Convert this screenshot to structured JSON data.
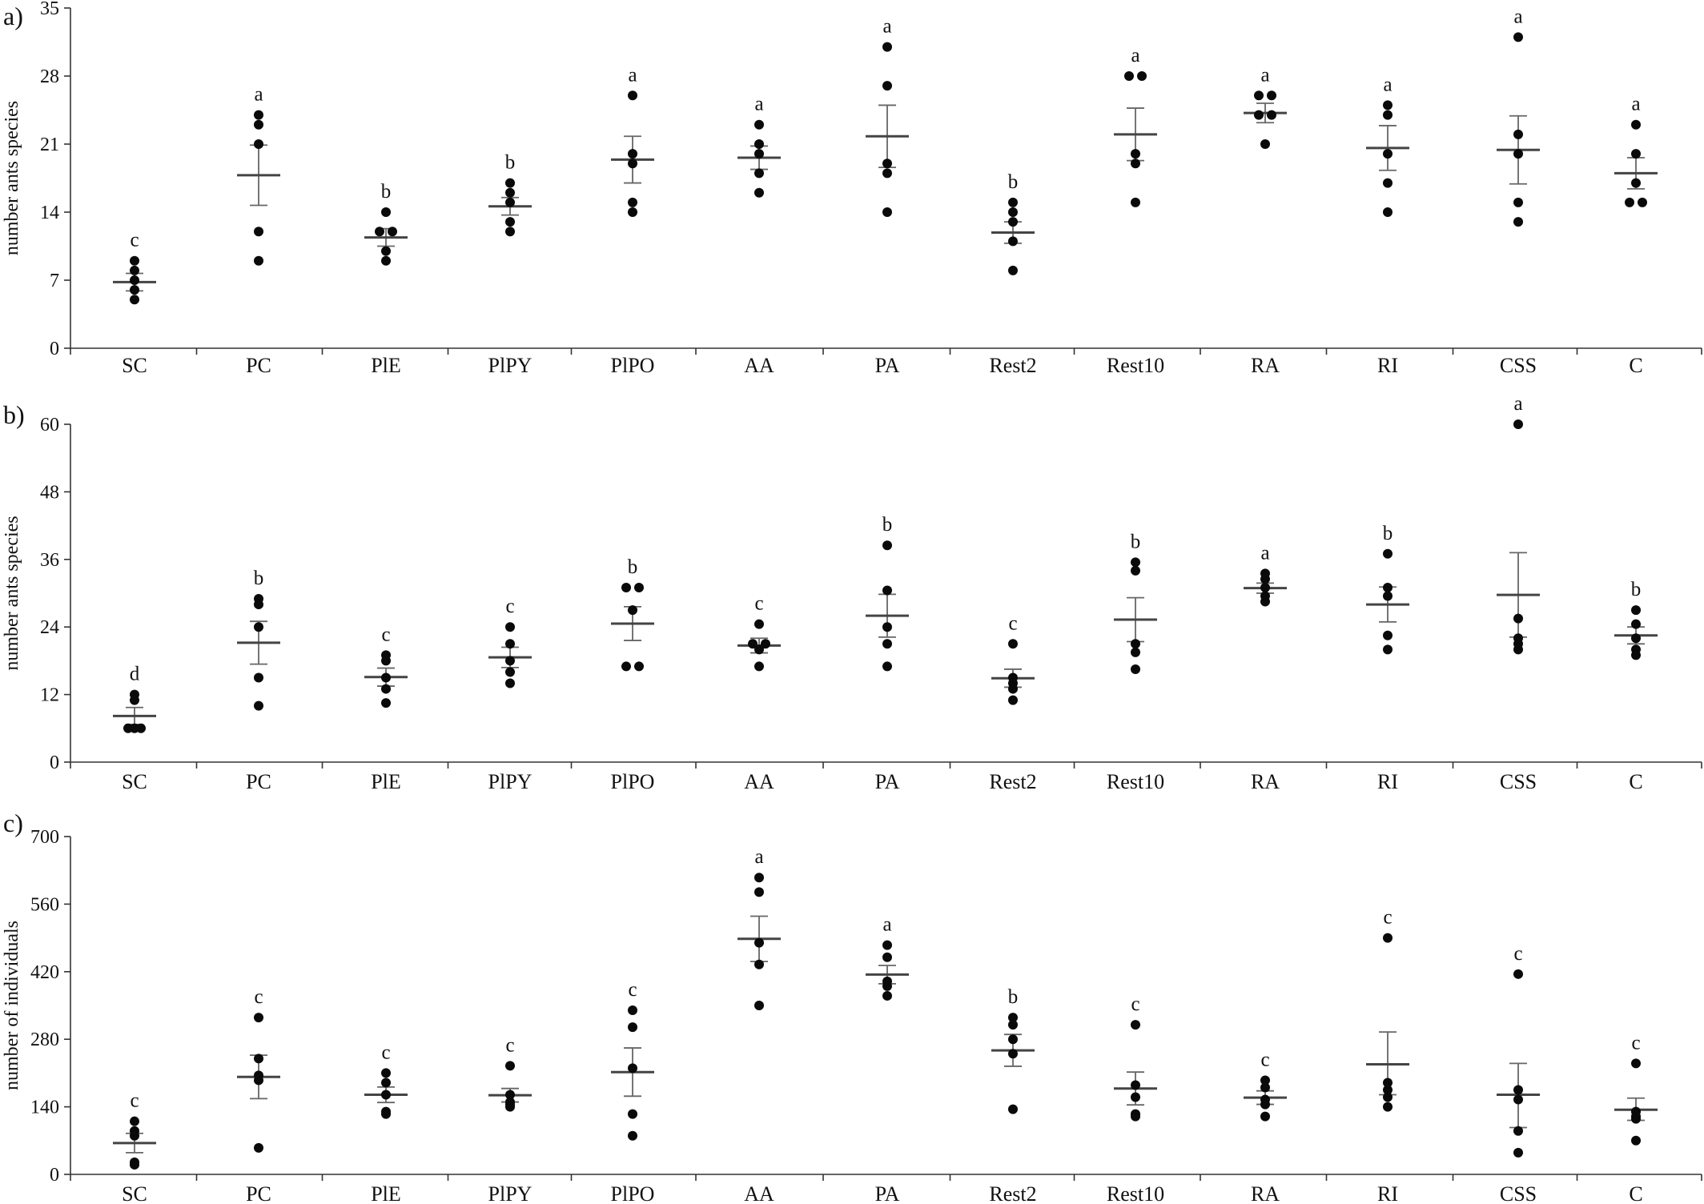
{
  "chart_data": [
    {
      "panel_label": "a)",
      "type": "scatter",
      "ylabel": "number ants species",
      "ylim": [
        0,
        35
      ],
      "yticks": [
        0,
        7,
        14,
        21,
        28,
        35
      ],
      "categories": [
        "SC",
        "PC",
        "PlE",
        "PlPY",
        "PlPO",
        "AA",
        "PA",
        "Rest2",
        "Rest10",
        "RA",
        "RI",
        "CSS",
        "C"
      ],
      "groups": [
        {
          "category": "SC",
          "points": [
            9,
            8,
            7,
            6,
            5
          ],
          "mean": 6.8,
          "se_low": 5.9,
          "se_high": 7.7,
          "letter": "c"
        },
        {
          "category": "PC",
          "points": [
            24,
            23,
            21,
            12,
            9
          ],
          "mean": 17.8,
          "se_low": 14.7,
          "se_high": 20.9,
          "letter": "a"
        },
        {
          "category": "PlE",
          "points": [
            14,
            12,
            12,
            10,
            9
          ],
          "mean": 11.4,
          "se_low": 10.5,
          "se_high": 12.3,
          "letter": "b"
        },
        {
          "category": "PlPY",
          "points": [
            17,
            16,
            15,
            13,
            12
          ],
          "mean": 14.6,
          "se_low": 13.7,
          "se_high": 15.5,
          "letter": "b"
        },
        {
          "category": "PlPO",
          "points": [
            26,
            20,
            19,
            15,
            14
          ],
          "mean": 19.4,
          "se_low": 17.0,
          "se_high": 21.8,
          "letter": "a"
        },
        {
          "category": "AA",
          "points": [
            23,
            21,
            20,
            18,
            16
          ],
          "mean": 19.6,
          "se_low": 18.4,
          "se_high": 20.8,
          "letter": "a"
        },
        {
          "category": "PA",
          "points": [
            31,
            27,
            19,
            18,
            14
          ],
          "mean": 21.8,
          "se_low": 18.6,
          "se_high": 25.0,
          "letter": "a"
        },
        {
          "category": "Rest2",
          "points": [
            15,
            14,
            13,
            11,
            8
          ],
          "mean": 11.9,
          "se_low": 10.8,
          "se_high": 13.0,
          "letter": "b"
        },
        {
          "category": "Rest10",
          "points": [
            28,
            28,
            20,
            19,
            15
          ],
          "mean": 22.0,
          "se_low": 19.3,
          "se_high": 24.7,
          "letter": "a"
        },
        {
          "category": "RA",
          "points": [
            26,
            26,
            24,
            24,
            21
          ],
          "mean": 24.2,
          "se_low": 23.2,
          "se_high": 25.2,
          "letter": "a"
        },
        {
          "category": "RI",
          "points": [
            25,
            24,
            20,
            17,
            14
          ],
          "mean": 20.6,
          "se_low": 18.3,
          "se_high": 22.9,
          "letter": "a"
        },
        {
          "category": "CSS",
          "points": [
            32,
            22,
            20,
            15,
            13
          ],
          "mean": 20.4,
          "se_low": 16.9,
          "se_high": 23.9,
          "letter": "a"
        },
        {
          "category": "C",
          "points": [
            23,
            20,
            17,
            15,
            15
          ],
          "mean": 18.0,
          "se_low": 16.4,
          "se_high": 19.6,
          "letter": "a"
        }
      ]
    },
    {
      "panel_label": "b)",
      "type": "scatter",
      "ylabel": "number ants species",
      "ylim": [
        0,
        60
      ],
      "yticks": [
        0,
        12,
        24,
        36,
        48,
        60
      ],
      "categories": [
        "SC",
        "PC",
        "PlE",
        "PlPY",
        "PlPO",
        "AA",
        "PA",
        "Rest2",
        "Rest10",
        "RA",
        "RI",
        "CSS",
        "C"
      ],
      "groups": [
        {
          "category": "SC",
          "points": [
            12,
            11,
            6,
            6,
            6
          ],
          "mean": 8.2,
          "se_low": 6.7,
          "se_high": 9.7,
          "letter": "d"
        },
        {
          "category": "PC",
          "points": [
            29,
            28,
            24,
            15,
            10
          ],
          "mean": 21.2,
          "se_low": 17.4,
          "se_high": 25.0,
          "letter": "b"
        },
        {
          "category": "PlE",
          "points": [
            19,
            18,
            15,
            13,
            10.5
          ],
          "mean": 15.1,
          "se_low": 13.5,
          "se_high": 16.7,
          "letter": "c"
        },
        {
          "category": "PlPY",
          "points": [
            24,
            21,
            18,
            16,
            14
          ],
          "mean": 18.6,
          "se_low": 16.8,
          "se_high": 20.4,
          "letter": "c"
        },
        {
          "category": "PlPO",
          "points": [
            31,
            31,
            27,
            17,
            17
          ],
          "mean": 24.6,
          "se_low": 21.6,
          "se_high": 27.6,
          "letter": "b"
        },
        {
          "category": "AA",
          "points": [
            24.5,
            21,
            21,
            20,
            17
          ],
          "mean": 20.7,
          "se_low": 19.4,
          "se_high": 22.0,
          "letter": "c"
        },
        {
          "category": "PA",
          "points": [
            38.5,
            30.5,
            24,
            21,
            17
          ],
          "mean": 26.0,
          "se_low": 22.2,
          "se_high": 29.8,
          "letter": "b"
        },
        {
          "category": "Rest2",
          "points": [
            21,
            15,
            14,
            13,
            11
          ],
          "mean": 14.9,
          "se_low": 13.3,
          "se_high": 16.5,
          "letter": "c"
        },
        {
          "category": "Rest10",
          "points": [
            35.5,
            34,
            21,
            19.5,
            16.5
          ],
          "mean": 25.3,
          "se_low": 21.4,
          "se_high": 29.2,
          "letter": "b"
        },
        {
          "category": "RA",
          "points": [
            33.5,
            32.5,
            31,
            29.5,
            28.5
          ],
          "mean": 30.9,
          "se_low": 30.0,
          "se_high": 31.8,
          "letter": "a"
        },
        {
          "category": "RI",
          "points": [
            37,
            31,
            29.5,
            22.5,
            20
          ],
          "mean": 28.0,
          "se_low": 24.9,
          "se_high": 31.1,
          "letter": "b"
        },
        {
          "category": "CSS",
          "points": [
            60,
            25.5,
            22,
            21,
            20
          ],
          "mean": 29.7,
          "se_low": 22.2,
          "se_high": 37.2,
          "letter": "a"
        },
        {
          "category": "C",
          "points": [
            27,
            24.5,
            22,
            20,
            19
          ],
          "mean": 22.5,
          "se_low": 21.0,
          "se_high": 24.0,
          "letter": "b"
        }
      ]
    },
    {
      "panel_label": "c)",
      "type": "scatter",
      "ylabel": "number of individuals",
      "ylim": [
        0,
        700
      ],
      "yticks": [
        0,
        140,
        280,
        420,
        560,
        700
      ],
      "categories": [
        "SC",
        "PC",
        "PlE",
        "PlPY",
        "PlPO",
        "AA",
        "PA",
        "Rest2",
        "Rest10",
        "RA",
        "RI",
        "CSS",
        "C"
      ],
      "groups": [
        {
          "category": "SC",
          "points": [
            110,
            90,
            80,
            25,
            20
          ],
          "mean": 65,
          "se_low": 45,
          "se_high": 85,
          "letter": "c"
        },
        {
          "category": "PC",
          "points": [
            325,
            240,
            205,
            195,
            55
          ],
          "mean": 202,
          "se_low": 157,
          "se_high": 247,
          "letter": "c"
        },
        {
          "category": "PlE",
          "points": [
            210,
            190,
            165,
            130,
            125
          ],
          "mean": 165,
          "se_low": 149,
          "se_high": 181,
          "letter": "c"
        },
        {
          "category": "PlPY",
          "points": [
            225,
            165,
            150,
            145,
            140
          ],
          "mean": 164,
          "se_low": 150,
          "se_high": 178,
          "letter": "c"
        },
        {
          "category": "PlPO",
          "points": [
            340,
            305,
            220,
            125,
            80
          ],
          "mean": 212,
          "se_low": 162,
          "se_high": 262,
          "letter": "c"
        },
        {
          "category": "AA",
          "points": [
            615,
            585,
            480,
            435,
            350
          ],
          "mean": 488,
          "se_low": 441,
          "se_high": 535,
          "letter": "a"
        },
        {
          "category": "PA",
          "points": [
            475,
            450,
            400,
            390,
            370
          ],
          "mean": 414,
          "se_low": 395,
          "se_high": 433,
          "letter": "a"
        },
        {
          "category": "Rest2",
          "points": [
            325,
            310,
            280,
            250,
            135
          ],
          "mean": 257,
          "se_low": 224,
          "se_high": 290,
          "letter": "b"
        },
        {
          "category": "Rest10",
          "points": [
            310,
            185,
            160,
            125,
            120
          ],
          "mean": 178,
          "se_low": 144,
          "se_high": 212,
          "letter": "c"
        },
        {
          "category": "RA",
          "points": [
            195,
            180,
            155,
            145,
            120
          ],
          "mean": 159,
          "se_low": 145,
          "se_high": 173,
          "letter": "c"
        },
        {
          "category": "RI",
          "points": [
            490,
            190,
            175,
            160,
            140
          ],
          "mean": 228,
          "se_low": 165,
          "se_high": 295,
          "letter": "c"
        },
        {
          "category": "CSS",
          "points": [
            415,
            175,
            155,
            90,
            45
          ],
          "mean": 165,
          "se_low": 97,
          "se_high": 230,
          "letter": "c"
        },
        {
          "category": "C",
          "points": [
            230,
            130,
            120,
            115,
            70
          ],
          "mean": 134,
          "se_low": 112,
          "se_high": 158,
          "letter": "c"
        }
      ]
    }
  ]
}
